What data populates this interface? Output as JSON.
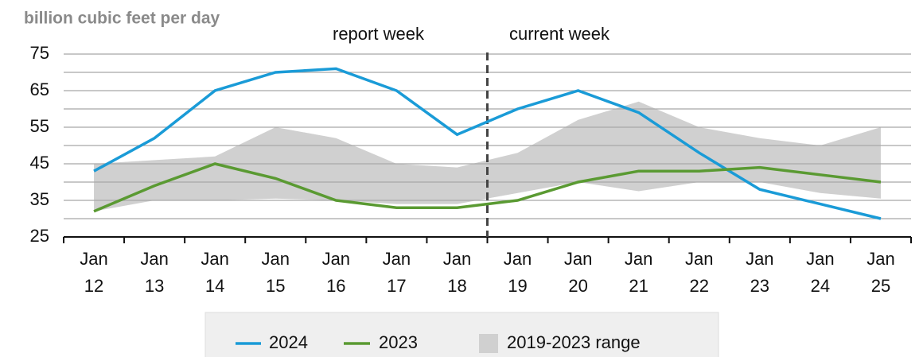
{
  "chart_data": {
    "type": "line",
    "y_axis_label": "billion cubic feet per day",
    "annotations": [
      "report week",
      "current week"
    ],
    "categories": [
      "Jan 12",
      "Jan 13",
      "Jan 14",
      "Jan 15",
      "Jan 16",
      "Jan 17",
      "Jan 18",
      "Jan 19",
      "Jan 20",
      "Jan 21",
      "Jan 22",
      "Jan 23",
      "Jan 24",
      "Jan 25"
    ],
    "series": [
      {
        "name": "2024",
        "color": "#1a9bd7",
        "values": [
          43,
          52,
          65,
          70,
          71,
          65,
          53,
          60,
          65,
          59,
          48,
          38,
          34,
          30
        ]
      },
      {
        "name": "2023",
        "color": "#5a9a32",
        "values": [
          32,
          39,
          45,
          41,
          35,
          33,
          33,
          35,
          40,
          43,
          43,
          44,
          42,
          40
        ]
      }
    ],
    "range": {
      "name": "2019-2023 range",
      "color": "#d0d0d0",
      "high": [
        45,
        46,
        47,
        55,
        52,
        45,
        44,
        48,
        57,
        62,
        55,
        52,
        50,
        55
      ],
      "low": [
        32,
        35,
        35,
        35.5,
        35,
        34,
        34,
        37,
        40,
        37.5,
        40,
        40,
        37,
        35.5
      ]
    },
    "ylim": [
      25,
      75
    ],
    "yticks": [
      25,
      35,
      45,
      55,
      65,
      75
    ],
    "grid": [
      30,
      35,
      40,
      45,
      50,
      55,
      60,
      65,
      70,
      75
    ]
  }
}
